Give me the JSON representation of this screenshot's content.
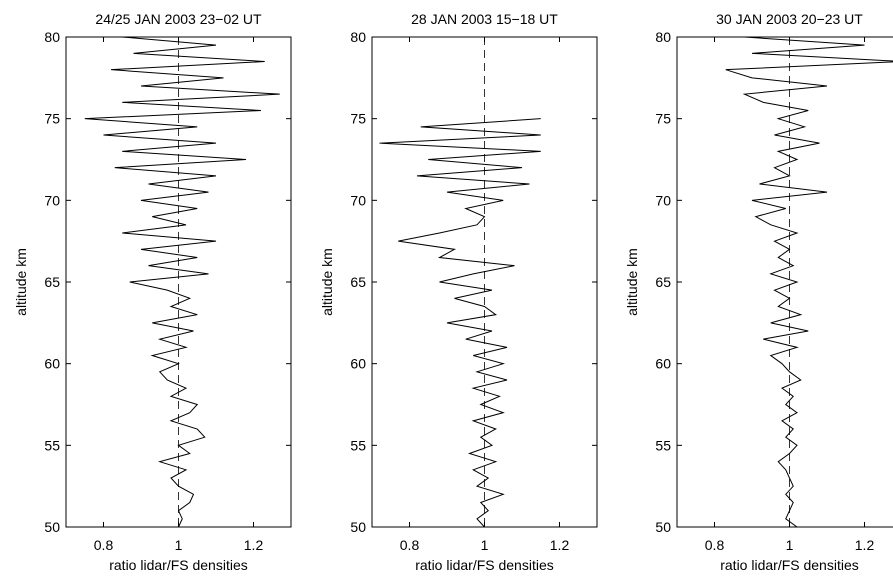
{
  "chart_data": [
    {
      "type": "line",
      "title": "24/25 JAN 2003 23−02 UT",
      "xlabel": "ratio lidar/FS densities",
      "ylabel": "altitude km",
      "altitude": [
        50,
        50.5,
        51,
        51.5,
        52,
        52.5,
        53,
        53.5,
        54,
        54.5,
        55,
        55.5,
        56,
        56.5,
        57,
        57.5,
        58,
        58.5,
        59,
        59.5,
        60,
        60.5,
        61,
        61.5,
        62,
        62.5,
        63,
        63.5,
        64,
        64.5,
        65,
        65.5,
        66,
        66.5,
        67,
        67.5,
        68,
        68.5,
        69,
        69.5,
        70,
        70.5,
        71,
        71.5,
        72,
        72.5,
        73,
        73.5,
        74,
        74.5,
        75,
        75.5,
        76,
        76.5,
        77,
        77.5,
        78,
        78.5,
        79,
        79.5,
        80
      ],
      "series": [
        {
          "color": "#000000",
          "values": [
            1.0,
            1.01,
            1.0,
            1.03,
            1.04,
            1.0,
            0.98,
            1.02,
            0.95,
            1.03,
            1.0,
            1.07,
            1.05,
            0.98,
            1.03,
            1.05,
            0.98,
            1.02,
            0.97,
            0.95,
            1.0,
            0.93,
            1.02,
            0.95,
            1.04,
            0.93,
            1.05,
            0.98,
            1.03,
            0.97,
            0.87,
            1.08,
            0.92,
            1.05,
            0.9,
            1.1,
            0.85,
            1.02,
            0.93,
            1.05,
            0.9,
            1.08,
            0.92,
            1.1,
            0.83,
            1.18,
            0.85,
            1.1,
            0.8,
            1.05,
            0.75,
            1.22,
            0.85,
            1.27,
            0.9,
            1.12,
            0.82,
            1.23,
            0.88,
            1.1,
            0.85
          ]
        }
      ],
      "reference": 1,
      "xlim": [
        0.7,
        1.3
      ],
      "ylim": [
        50,
        80
      ],
      "xticks": [
        0.8,
        1,
        1.2
      ],
      "yticks": [
        50,
        55,
        60,
        65,
        70,
        75,
        80
      ]
    },
    {
      "type": "line",
      "title": "28 JAN 2003 15−18 UT",
      "xlabel": "ratio lidar/FS densities",
      "ylabel": "altitude km",
      "altitude": [
        50,
        50.5,
        51,
        51.5,
        52,
        52.5,
        53,
        53.5,
        54,
        54.5,
        55,
        55.5,
        56,
        56.5,
        57,
        57.5,
        58,
        58.5,
        59,
        59.5,
        60,
        60.5,
        61,
        61.5,
        62,
        62.5,
        63,
        63.5,
        64,
        64.5,
        65,
        65.5,
        66,
        66.5,
        67,
        67.5,
        68,
        68.5,
        69,
        69.5,
        70,
        70.5,
        71,
        71.5,
        72,
        72.5,
        73,
        73.5,
        74,
        74.5,
        75
      ],
      "series": [
        {
          "color": "#000000",
          "values": [
            1.0,
            0.98,
            1.01,
            0.99,
            1.05,
            0.98,
            1.01,
            0.97,
            1.03,
            0.96,
            1.02,
            0.99,
            1.03,
            0.97,
            1.05,
            0.99,
            1.04,
            0.97,
            1.06,
            0.98,
            1.05,
            0.97,
            1.06,
            0.95,
            1.02,
            0.9,
            1.03,
            1.0,
            0.92,
            1.02,
            0.88,
            0.97,
            1.08,
            0.88,
            0.92,
            0.77,
            0.88,
            0.98,
            1.0,
            0.95,
            1.05,
            0.9,
            1.12,
            0.82,
            1.1,
            0.85,
            1.15,
            0.72,
            1.15,
            0.83,
            1.15
          ]
        }
      ],
      "reference": 1,
      "xlim": [
        0.7,
        1.3
      ],
      "ylim": [
        50,
        80
      ],
      "xticks": [
        0.8,
        1,
        1.2
      ],
      "yticks": [
        50,
        55,
        60,
        65,
        70,
        75,
        80
      ]
    },
    {
      "type": "line",
      "title": "30 JAN 2003 20−23 UT",
      "xlabel": "ratio lidar/FS densities",
      "ylabel": "altitude km",
      "altitude": [
        50,
        50.5,
        51,
        51.5,
        52,
        52.5,
        53,
        53.5,
        54,
        54.5,
        55,
        55.5,
        56,
        56.5,
        57,
        57.5,
        58,
        58.5,
        59,
        59.5,
        60,
        60.5,
        61,
        61.5,
        62,
        62.5,
        63,
        63.5,
        64,
        64.5,
        65,
        65.5,
        66,
        66.5,
        67,
        67.5,
        68,
        68.5,
        69,
        69.5,
        70,
        70.5,
        71,
        71.5,
        72,
        72.5,
        73,
        73.5,
        74,
        74.5,
        75,
        75.5,
        76,
        76.5,
        77,
        77.5,
        78,
        78.5,
        79,
        79.5,
        80
      ],
      "series": [
        {
          "color": "#000000",
          "values": [
            1.02,
            0.99,
            1.0,
            1.01,
            0.99,
            1.01,
            1.0,
            0.99,
            0.97,
            1.0,
            1.02,
            0.99,
            1.01,
            0.98,
            1.02,
            0.99,
            1.01,
            0.98,
            1.03,
            1.0,
            0.98,
            0.95,
            1.02,
            0.93,
            1.05,
            0.95,
            1.03,
            0.97,
            1.0,
            0.96,
            1.02,
            0.95,
            1.01,
            0.97,
            1.0,
            0.96,
            1.02,
            0.95,
            0.91,
            0.99,
            0.9,
            1.1,
            0.92,
            1.0,
            0.96,
            1.02,
            0.97,
            1.08,
            0.96,
            1.04,
            0.97,
            1.05,
            0.93,
            0.88,
            1.1,
            0.9,
            0.83,
            1.3,
            0.9,
            1.2,
            0.88
          ]
        }
      ],
      "reference": 1,
      "xlim": [
        0.7,
        1.3
      ],
      "ylim": [
        50,
        80
      ],
      "xticks": [
        0.8,
        1,
        1.2
      ],
      "yticks": [
        50,
        55,
        60,
        65,
        70,
        75,
        80
      ]
    }
  ]
}
